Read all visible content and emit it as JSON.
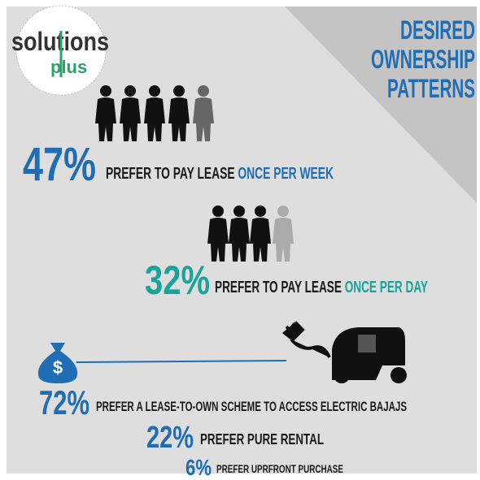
{
  "logo": {
    "main": "solutions",
    "sub": "plus"
  },
  "title": [
    "DESIRED",
    "OWNERSHIP",
    "PATTERNS"
  ],
  "stats": [
    {
      "percent": "47%",
      "text": "PREFER TO PAY LEASE",
      "highlight": "ONCE PER WEEK"
    },
    {
      "percent": "32%",
      "text": "PREFER TO PAY LEASE",
      "highlight": "ONCE PER DAY"
    },
    {
      "percent": "72%",
      "text": "PREFER A LEASE-TO-OWN SCHEME TO ACCESS ELECTRIC BAJAJS"
    },
    {
      "percent": "22%",
      "text": "PREFER PURE RENTAL"
    },
    {
      "percent": "6%",
      "text": "PREFER UPRFRONT PURCHASE"
    }
  ],
  "money_bag_symbol": "$"
}
